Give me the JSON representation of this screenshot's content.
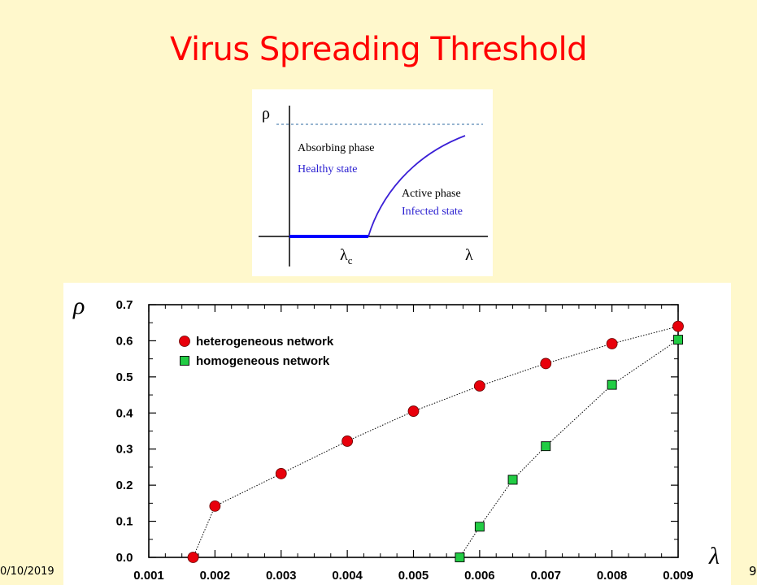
{
  "slide": {
    "title": "Virus Spreading Threshold",
    "date": "0/10/2019",
    "page_number": "9",
    "title_color": "#ff0000",
    "background_color": "#fff8cc"
  },
  "phase_diagram": {
    "y_symbol": "ρ",
    "x_symbol": "λ",
    "critical_label": "λ",
    "critical_subscript": "c",
    "absorbing_label": "Absorbing phase",
    "healthy_label": "Healthy state",
    "active_label": "Active phase",
    "infected_label": "Infected state",
    "curve_color": "#3a1fd6",
    "threshold_color": "#0000ff"
  },
  "chart_data": {
    "type": "scatter",
    "xlabel": "λ",
    "ylabel": "ρ",
    "xlim": [
      0.001,
      0.009
    ],
    "ylim": [
      0.0,
      0.7
    ],
    "x_ticks": [
      "0.001",
      "0.002",
      "0.003",
      "0.004",
      "0.005",
      "0.006",
      "0.007",
      "0.008",
      "0.009"
    ],
    "y_ticks": [
      "0.0",
      "0.1",
      "0.2",
      "0.3",
      "0.4",
      "0.5",
      "0.6",
      "0.7"
    ],
    "legend_placement": "top-left",
    "grid": false,
    "series": [
      {
        "name": "heterogeneous network",
        "marker": "circle",
        "color": "#e8000b",
        "x": [
          0.00167,
          0.002,
          0.003,
          0.004,
          0.005,
          0.006,
          0.007,
          0.008,
          0.009
        ],
        "y": [
          0.0,
          0.142,
          0.232,
          0.322,
          0.405,
          0.475,
          0.537,
          0.592,
          0.64
        ]
      },
      {
        "name": "homogeneous network",
        "marker": "square",
        "color": "#22cc44",
        "x": [
          0.0057,
          0.006,
          0.0065,
          0.007,
          0.008,
          0.009
        ],
        "y": [
          0.0,
          0.085,
          0.215,
          0.308,
          0.478,
          0.603
        ]
      }
    ]
  }
}
